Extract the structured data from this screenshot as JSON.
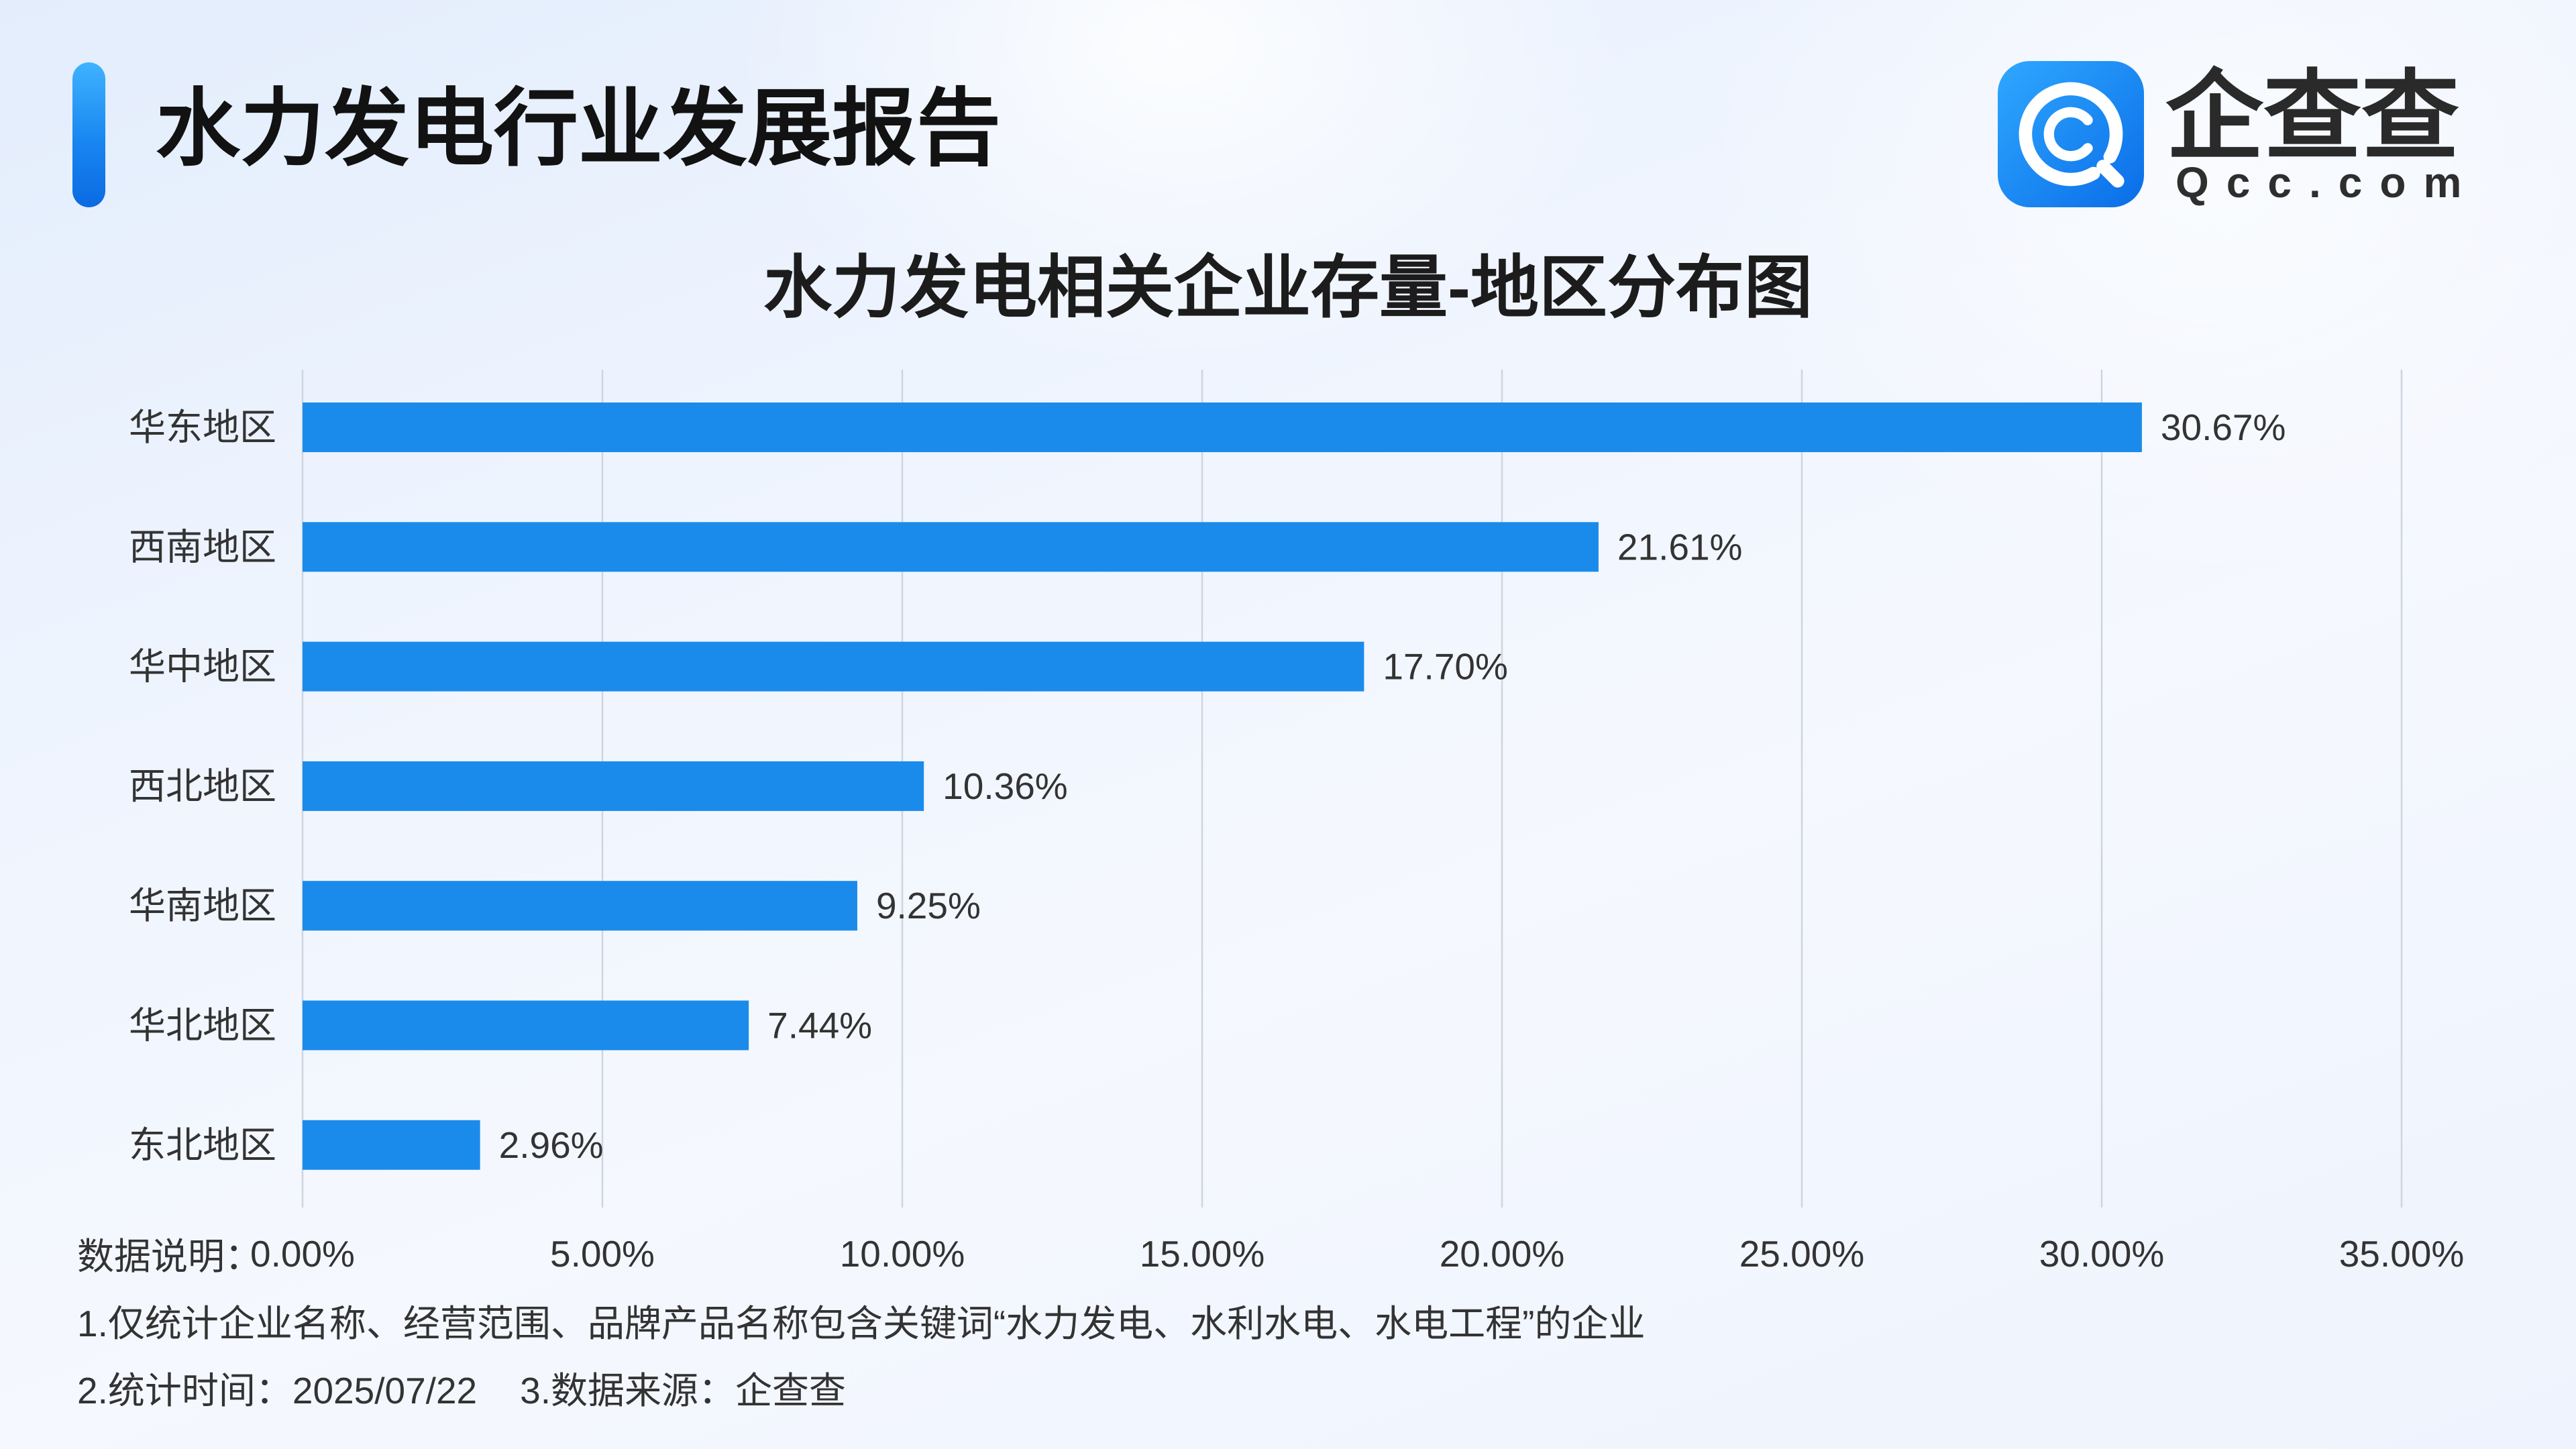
{
  "header": {
    "title": "水力发电行业发展报告"
  },
  "logo": {
    "icon": "qcc-logo-icon",
    "name": "企查查",
    "domain": "Qcc.com"
  },
  "colors": {
    "accent": "#1886f0",
    "bar": "#1b8beb",
    "grid": "#cfd5de"
  },
  "chart_data": {
    "type": "bar",
    "orientation": "horizontal",
    "title": "水力发电相关企业存量-地区分布图",
    "categories": [
      "华东地区",
      "西南地区",
      "华中地区",
      "西北地区",
      "华南地区",
      "华北地区",
      "东北地区"
    ],
    "values": [
      30.67,
      21.61,
      17.7,
      10.36,
      9.25,
      7.44,
      2.96
    ],
    "value_labels": [
      "30.67%",
      "21.61%",
      "17.70%",
      "10.36%",
      "9.25%",
      "7.44%",
      "2.96%"
    ],
    "xlim": [
      0,
      35
    ],
    "x_ticks": [
      0,
      5,
      10,
      15,
      20,
      25,
      30,
      35
    ],
    "x_tick_labels": [
      "0.00%",
      "5.00%",
      "10.00%",
      "15.00%",
      "20.00%",
      "25.00%",
      "30.00%",
      "35.00%"
    ],
    "grid": true
  },
  "notes": {
    "label": "数据说明：",
    "scope": "1.仅统计企业名称、经营范围、品牌产品名称包含关键词“水力发电、水利水电、水电工程”的企业",
    "stat_time": "2.统计时间：2025/07/22",
    "source": "3.数据来源：企查查"
  }
}
